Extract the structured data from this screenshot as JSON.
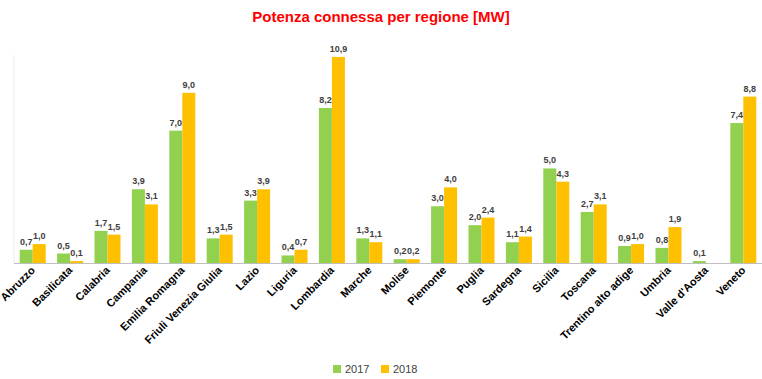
{
  "chart_data": {
    "type": "bar",
    "title": "Potenza connessa per regione [MW]",
    "categories": [
      "Abruzzo",
      "Basilicata",
      "Calabria",
      "Campania",
      "Emilia Romagna",
      "Friuli Venezia Giulia",
      "Lazio",
      "Liguria",
      "Lombardia",
      "Marche",
      "Molise",
      "Piemonte",
      "Puglia",
      "Sardegna",
      "Sicilia",
      "Toscana",
      "Trentino alto adige",
      "Umbria",
      "Valle d'Aosta",
      "Veneto"
    ],
    "series": [
      {
        "name": "2017",
        "color": "#92d050",
        "values": [
          0.7,
          0.5,
          1.7,
          3.9,
          7.0,
          1.3,
          3.3,
          0.4,
          8.2,
          1.3,
          0.2,
          3.0,
          2.0,
          1.1,
          5.0,
          2.7,
          0.9,
          0.8,
          0.1,
          7.4
        ],
        "value_labels": [
          "0,7",
          "0,5",
          "1,7",
          "3,9",
          "7,0",
          "1,3",
          "3,3",
          "0,4",
          "8,2",
          "1,3",
          "0,2",
          "3,0",
          "2,0",
          "1,1",
          "5,0",
          "2,7",
          "0,9",
          "0,8",
          "0,1",
          "7,4"
        ]
      },
      {
        "name": "2018",
        "color": "#ffc000",
        "values": [
          1.0,
          0.1,
          1.5,
          3.1,
          9.0,
          1.5,
          3.9,
          0.7,
          10.9,
          1.1,
          0.2,
          4.0,
          2.4,
          1.4,
          4.3,
          3.1,
          1.0,
          1.9,
          0.0,
          8.8
        ],
        "value_labels": [
          "1,0",
          "0,1",
          "1,5",
          "3,1",
          "9,0",
          "1,5",
          "3,9",
          "0,7",
          "10,9",
          "1,1",
          "0,2",
          "4,0",
          "2,4",
          "1,4",
          "4,3",
          "3,1",
          "1,0",
          "1,9",
          null,
          "8,8"
        ]
      }
    ],
    "ylim": [
      0,
      11
    ],
    "data_labels": true,
    "tick_labels": "x",
    "grid": false,
    "legend": "bottom"
  }
}
